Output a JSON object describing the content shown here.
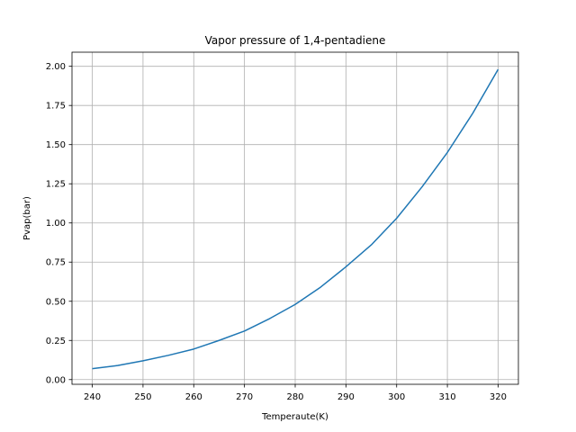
{
  "chart_data": {
    "type": "line",
    "title": "Vapor pressure of 1,4-pentadiene",
    "xlabel": "Temperaute(K)",
    "ylabel": "Pvap(bar)",
    "xlim": [
      236,
      324
    ],
    "ylim": [
      -0.03,
      2.09
    ],
    "grid": true,
    "x_ticks": [
      240,
      250,
      260,
      270,
      280,
      290,
      300,
      310,
      320
    ],
    "x_tick_labels": [
      "240",
      "250",
      "260",
      "270",
      "280",
      "290",
      "300",
      "310",
      "320"
    ],
    "y_ticks": [
      0,
      0.25,
      0.5,
      0.75,
      1.0,
      1.25,
      1.5,
      1.75,
      2.0
    ],
    "y_tick_labels": [
      "0.00",
      "0.25",
      "0.50",
      "0.75",
      "1.00",
      "1.25",
      "1.50",
      "1.75",
      "2.00"
    ],
    "series": [
      {
        "color": "#1f77b4",
        "x": [
          240,
          245,
          250,
          255,
          260,
          265,
          270,
          275,
          280,
          285,
          290,
          295,
          300,
          305,
          310,
          315,
          320
        ],
        "y": [
          0.07,
          0.09,
          0.12,
          0.155,
          0.195,
          0.25,
          0.31,
          0.39,
          0.48,
          0.59,
          0.72,
          0.86,
          1.03,
          1.23,
          1.45,
          1.7,
          1.98
        ]
      }
    ]
  }
}
